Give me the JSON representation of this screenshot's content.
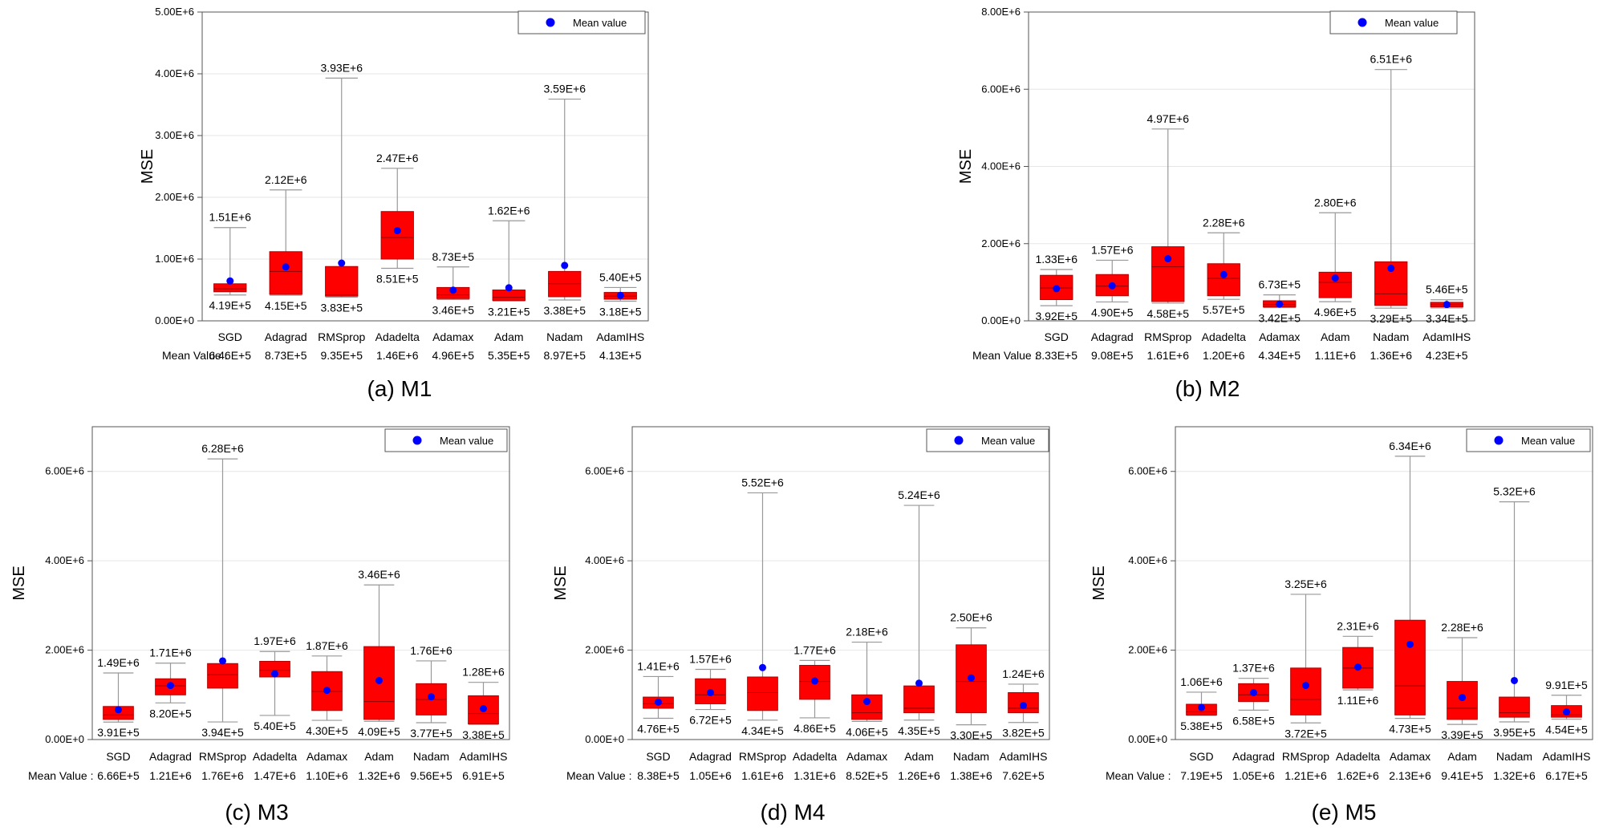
{
  "chart_data": [
    {
      "type": "box",
      "caption": "(a) M1",
      "ylabel": "MSE",
      "ylim": [
        0,
        5000000
      ],
      "yticks": [
        "0.00E+0",
        "1.00E+6",
        "2.00E+6",
        "3.00E+6",
        "4.00E+6",
        "5.00E+6"
      ],
      "legend": "Mean value",
      "mean_row_label": "Mean Value :",
      "categories": [
        "SGD",
        "Adagrad",
        "RMSprop",
        "Adadelta",
        "Adamax",
        "Adam",
        "Nadam",
        "AdamIHS"
      ],
      "max_labels": [
        "1.51E+6",
        "2.12E+6",
        "3.93E+6",
        "2.47E+6",
        "8.73E+5",
        "1.62E+6",
        "3.59E+6",
        "5.40E+5"
      ],
      "min_labels": [
        "4.19E+5",
        "4.15E+5",
        "3.83E+5",
        "8.51E+5",
        "3.46E+5",
        "3.21E+5",
        "3.38E+5",
        "3.18E+5"
      ],
      "mean_labels": [
        "6.46E+5",
        "8.73E+5",
        "9.35E+5",
        "1.46E+6",
        "4.96E+5",
        "5.35E+5",
        "8.97E+5",
        "4.13E+5"
      ],
      "boxes": [
        {
          "min": 419000,
          "q1": 470000,
          "median": 520000,
          "q3": 600000,
          "max": 1510000,
          "mean": 646000
        },
        {
          "min": 415000,
          "q1": 430000,
          "median": 800000,
          "q3": 1120000,
          "max": 2120000,
          "mean": 873000
        },
        {
          "min": 383000,
          "q1": 400000,
          "median": 420000,
          "q3": 880000,
          "max": 3930000,
          "mean": 935000
        },
        {
          "min": 851000,
          "q1": 1000000,
          "median": 1350000,
          "q3": 1770000,
          "max": 2470000,
          "mean": 1460000
        },
        {
          "min": 346000,
          "q1": 360000,
          "median": 420000,
          "q3": 540000,
          "max": 873000,
          "mean": 496000
        },
        {
          "min": 321000,
          "q1": 330000,
          "median": 380000,
          "q3": 500000,
          "max": 1620000,
          "mean": 535000
        },
        {
          "min": 338000,
          "q1": 390000,
          "median": 600000,
          "q3": 800000,
          "max": 3590000,
          "mean": 897000
        },
        {
          "min": 318000,
          "q1": 350000,
          "median": 400000,
          "q3": 460000,
          "max": 540000,
          "mean": 413000
        }
      ]
    },
    {
      "type": "box",
      "caption": "(b) M2",
      "ylabel": "MSE",
      "ylim": [
        0,
        8000000
      ],
      "yticks": [
        "0.00E+0",
        "2.00E+6",
        "4.00E+6",
        "6.00E+6",
        "8.00E+6"
      ],
      "legend": "Mean value",
      "mean_row_label": "Mean Value :",
      "categories": [
        "SGD",
        "Adagrad",
        "RMSprop",
        "Adadelta",
        "Adamax",
        "Adam",
        "Nadam",
        "AdamIHS"
      ],
      "max_labels": [
        "1.33E+6",
        "1.57E+6",
        "4.97E+6",
        "2.28E+6",
        "6.73E+5",
        "2.80E+6",
        "6.51E+6",
        "5.46E+5"
      ],
      "min_labels": [
        "3.92E+5",
        "4.90E+5",
        "4.58E+5",
        "5.57E+5",
        "3.42E+5",
        "4.96E+5",
        "3.29E+5",
        "3.34E+5"
      ],
      "mean_labels": [
        "8.33E+5",
        "9.08E+5",
        "1.61E+6",
        "1.20E+6",
        "4.34E+5",
        "1.11E+6",
        "1.36E+6",
        "4.23E+5"
      ],
      "boxes": [
        {
          "min": 392000,
          "q1": 550000,
          "median": 850000,
          "q3": 1180000,
          "max": 1330000,
          "mean": 833000
        },
        {
          "min": 490000,
          "q1": 650000,
          "median": 900000,
          "q3": 1200000,
          "max": 1570000,
          "mean": 908000
        },
        {
          "min": 458000,
          "q1": 500000,
          "median": 1400000,
          "q3": 1920000,
          "max": 4970000,
          "mean": 1610000
        },
        {
          "min": 557000,
          "q1": 650000,
          "median": 1100000,
          "q3": 1480000,
          "max": 2280000,
          "mean": 1200000
        },
        {
          "min": 342000,
          "q1": 360000,
          "median": 420000,
          "q3": 520000,
          "max": 673000,
          "mean": 434000
        },
        {
          "min": 496000,
          "q1": 600000,
          "median": 1000000,
          "q3": 1260000,
          "max": 2800000,
          "mean": 1110000
        },
        {
          "min": 329000,
          "q1": 400000,
          "median": 700000,
          "q3": 1530000,
          "max": 6510000,
          "mean": 1360000
        },
        {
          "min": 334000,
          "q1": 360000,
          "median": 420000,
          "q3": 480000,
          "max": 546000,
          "mean": 423000
        }
      ]
    },
    {
      "type": "box",
      "caption": "(c) M3",
      "ylabel": "MSE",
      "ylim": [
        0,
        7000000
      ],
      "yticks": [
        "0.00E+0",
        "2.00E+6",
        "4.00E+6",
        "6.00E+6"
      ],
      "legend": "Mean value",
      "mean_row_label": "Mean Value :",
      "categories": [
        "SGD",
        "Adagrad",
        "RMSprop",
        "Adadelta",
        "Adamax",
        "Adam",
        "Nadam",
        "AdamIHS"
      ],
      "max_labels": [
        "1.49E+6",
        "1.71E+6",
        "6.28E+6",
        "1.97E+6",
        "1.87E+6",
        "3.46E+6",
        "1.76E+6",
        "1.28E+6"
      ],
      "min_labels": [
        "3.91E+5",
        "8.20E+5",
        "3.94E+5",
        "5.40E+5",
        "4.30E+5",
        "4.09E+5",
        "3.77E+5",
        "3.38E+5"
      ],
      "mean_labels": [
        "6.66E+5",
        "1.21E+6",
        "1.76E+6",
        "1.47E+6",
        "1.10E+6",
        "1.32E+6",
        "9.56E+5",
        "6.91E+5"
      ],
      "boxes": [
        {
          "min": 391000,
          "q1": 450000,
          "median": 550000,
          "q3": 740000,
          "max": 1490000,
          "mean": 666000
        },
        {
          "min": 820000,
          "q1": 1000000,
          "median": 1200000,
          "q3": 1360000,
          "max": 1710000,
          "mean": 1210000
        },
        {
          "min": 394000,
          "q1": 1150000,
          "median": 1450000,
          "q3": 1700000,
          "max": 6280000,
          "mean": 1760000
        },
        {
          "min": 540000,
          "q1": 1400000,
          "median": 1550000,
          "q3": 1750000,
          "max": 1970000,
          "mean": 1470000
        },
        {
          "min": 430000,
          "q1": 650000,
          "median": 1080000,
          "q3": 1520000,
          "max": 1870000,
          "mean": 1100000
        },
        {
          "min": 409000,
          "q1": 450000,
          "median": 850000,
          "q3": 2080000,
          "max": 3460000,
          "mean": 1320000
        },
        {
          "min": 377000,
          "q1": 550000,
          "median": 900000,
          "q3": 1250000,
          "max": 1760000,
          "mean": 956000
        },
        {
          "min": 338000,
          "q1": 350000,
          "median": 580000,
          "q3": 980000,
          "max": 1280000,
          "mean": 691000
        }
      ]
    },
    {
      "type": "box",
      "caption": "(d) M4",
      "ylabel": "MSE",
      "ylim": [
        0,
        7000000
      ],
      "yticks": [
        "0.00E+0",
        "2.00E+6",
        "4.00E+6",
        "6.00E+6"
      ],
      "legend": "Mean value",
      "mean_row_label": "Mean Value :",
      "categories": [
        "SGD",
        "Adagrad",
        "RMSprop",
        "Adadelta",
        "Adamax",
        "Adam",
        "Nadam",
        "AdamIHS"
      ],
      "max_labels": [
        "1.41E+6",
        "1.57E+6",
        "5.52E+6",
        "1.77E+6",
        "2.18E+6",
        "5.24E+6",
        "2.50E+6",
        "1.24E+6"
      ],
      "min_labels": [
        "4.76E+5",
        "6.72E+5",
        "4.34E+5",
        "4.86E+5",
        "4.06E+5",
        "4.35E+5",
        "3.30E+5",
        "3.82E+5"
      ],
      "mean_labels": [
        "8.38E+5",
        "1.05E+6",
        "1.61E+6",
        "1.31E+6",
        "8.52E+5",
        "1.26E+6",
        "1.38E+6",
        "7.62E+5"
      ],
      "boxes": [
        {
          "min": 476000,
          "q1": 700000,
          "median": 800000,
          "q3": 950000,
          "max": 1410000,
          "mean": 838000
        },
        {
          "min": 672000,
          "q1": 800000,
          "median": 1000000,
          "q3": 1360000,
          "max": 1570000,
          "mean": 1050000
        },
        {
          "min": 434000,
          "q1": 650000,
          "median": 1050000,
          "q3": 1400000,
          "max": 5520000,
          "mean": 1610000
        },
        {
          "min": 486000,
          "q1": 900000,
          "median": 1300000,
          "q3": 1660000,
          "max": 1770000,
          "mean": 1310000
        },
        {
          "min": 406000,
          "q1": 450000,
          "median": 600000,
          "q3": 1000000,
          "max": 2180000,
          "mean": 852000
        },
        {
          "min": 435000,
          "q1": 600000,
          "median": 700000,
          "q3": 1200000,
          "max": 5240000,
          "mean": 1260000
        },
        {
          "min": 330000,
          "q1": 600000,
          "median": 1300000,
          "q3": 2120000,
          "max": 2500000,
          "mean": 1380000
        },
        {
          "min": 382000,
          "q1": 600000,
          "median": 700000,
          "q3": 1050000,
          "max": 1240000,
          "mean": 762000
        }
      ]
    },
    {
      "type": "box",
      "caption": "(e) M5",
      "ylabel": "MSE",
      "ylim": [
        0,
        7000000
      ],
      "yticks": [
        "0.00E+0",
        "2.00E+6",
        "4.00E+6",
        "6.00E+6"
      ],
      "legend": "Mean value",
      "mean_row_label": "Mean Value :",
      "categories": [
        "SGD",
        "Adagrad",
        "RMSprop",
        "Adadelta",
        "Adamax",
        "Adam",
        "Nadam",
        "AdamIHS"
      ],
      "max_labels": [
        "1.06E+6",
        "1.37E+6",
        "3.25E+6",
        "2.31E+6",
        "6.34E+6",
        "2.28E+6",
        "5.32E+6",
        "9.91E+5"
      ],
      "min_labels": [
        "5.38E+5",
        "6.58E+5",
        "3.72E+5",
        "1.11E+6",
        "4.73E+5",
        "3.39E+5",
        "3.95E+5",
        "4.54E+5"
      ],
      "mean_labels": [
        "7.19E+5",
        "1.05E+6",
        "1.21E+6",
        "1.62E+6",
        "2.13E+6",
        "9.41E+5",
        "1.32E+6",
        "6.17E+5"
      ],
      "boxes": [
        {
          "min": 538000,
          "q1": 550000,
          "median": 620000,
          "q3": 790000,
          "max": 1060000,
          "mean": 719000
        },
        {
          "min": 658000,
          "q1": 850000,
          "median": 1000000,
          "q3": 1250000,
          "max": 1370000,
          "mean": 1050000
        },
        {
          "min": 372000,
          "q1": 550000,
          "median": 900000,
          "q3": 1600000,
          "max": 3250000,
          "mean": 1210000
        },
        {
          "min": 1110000,
          "q1": 1150000,
          "median": 1600000,
          "q3": 2060000,
          "max": 2310000,
          "mean": 1620000
        },
        {
          "min": 473000,
          "q1": 550000,
          "median": 1200000,
          "q3": 2670000,
          "max": 6340000,
          "mean": 2130000
        },
        {
          "min": 339000,
          "q1": 450000,
          "median": 700000,
          "q3": 1300000,
          "max": 2280000,
          "mean": 941000
        },
        {
          "min": 395000,
          "q1": 500000,
          "median": 600000,
          "q3": 950000,
          "max": 5320000,
          "mean": 1320000
        },
        {
          "min": 454000,
          "q1": 500000,
          "median": 550000,
          "q3": 760000,
          "max": 991000,
          "mean": 617000
        }
      ]
    }
  ],
  "colors": {
    "box_fill": "#ff0000",
    "box_stroke": "#b30000",
    "mean_marker": "#0000ff",
    "whisker": "#999999",
    "grid": "#e6e6e6",
    "frame": "#555555"
  }
}
